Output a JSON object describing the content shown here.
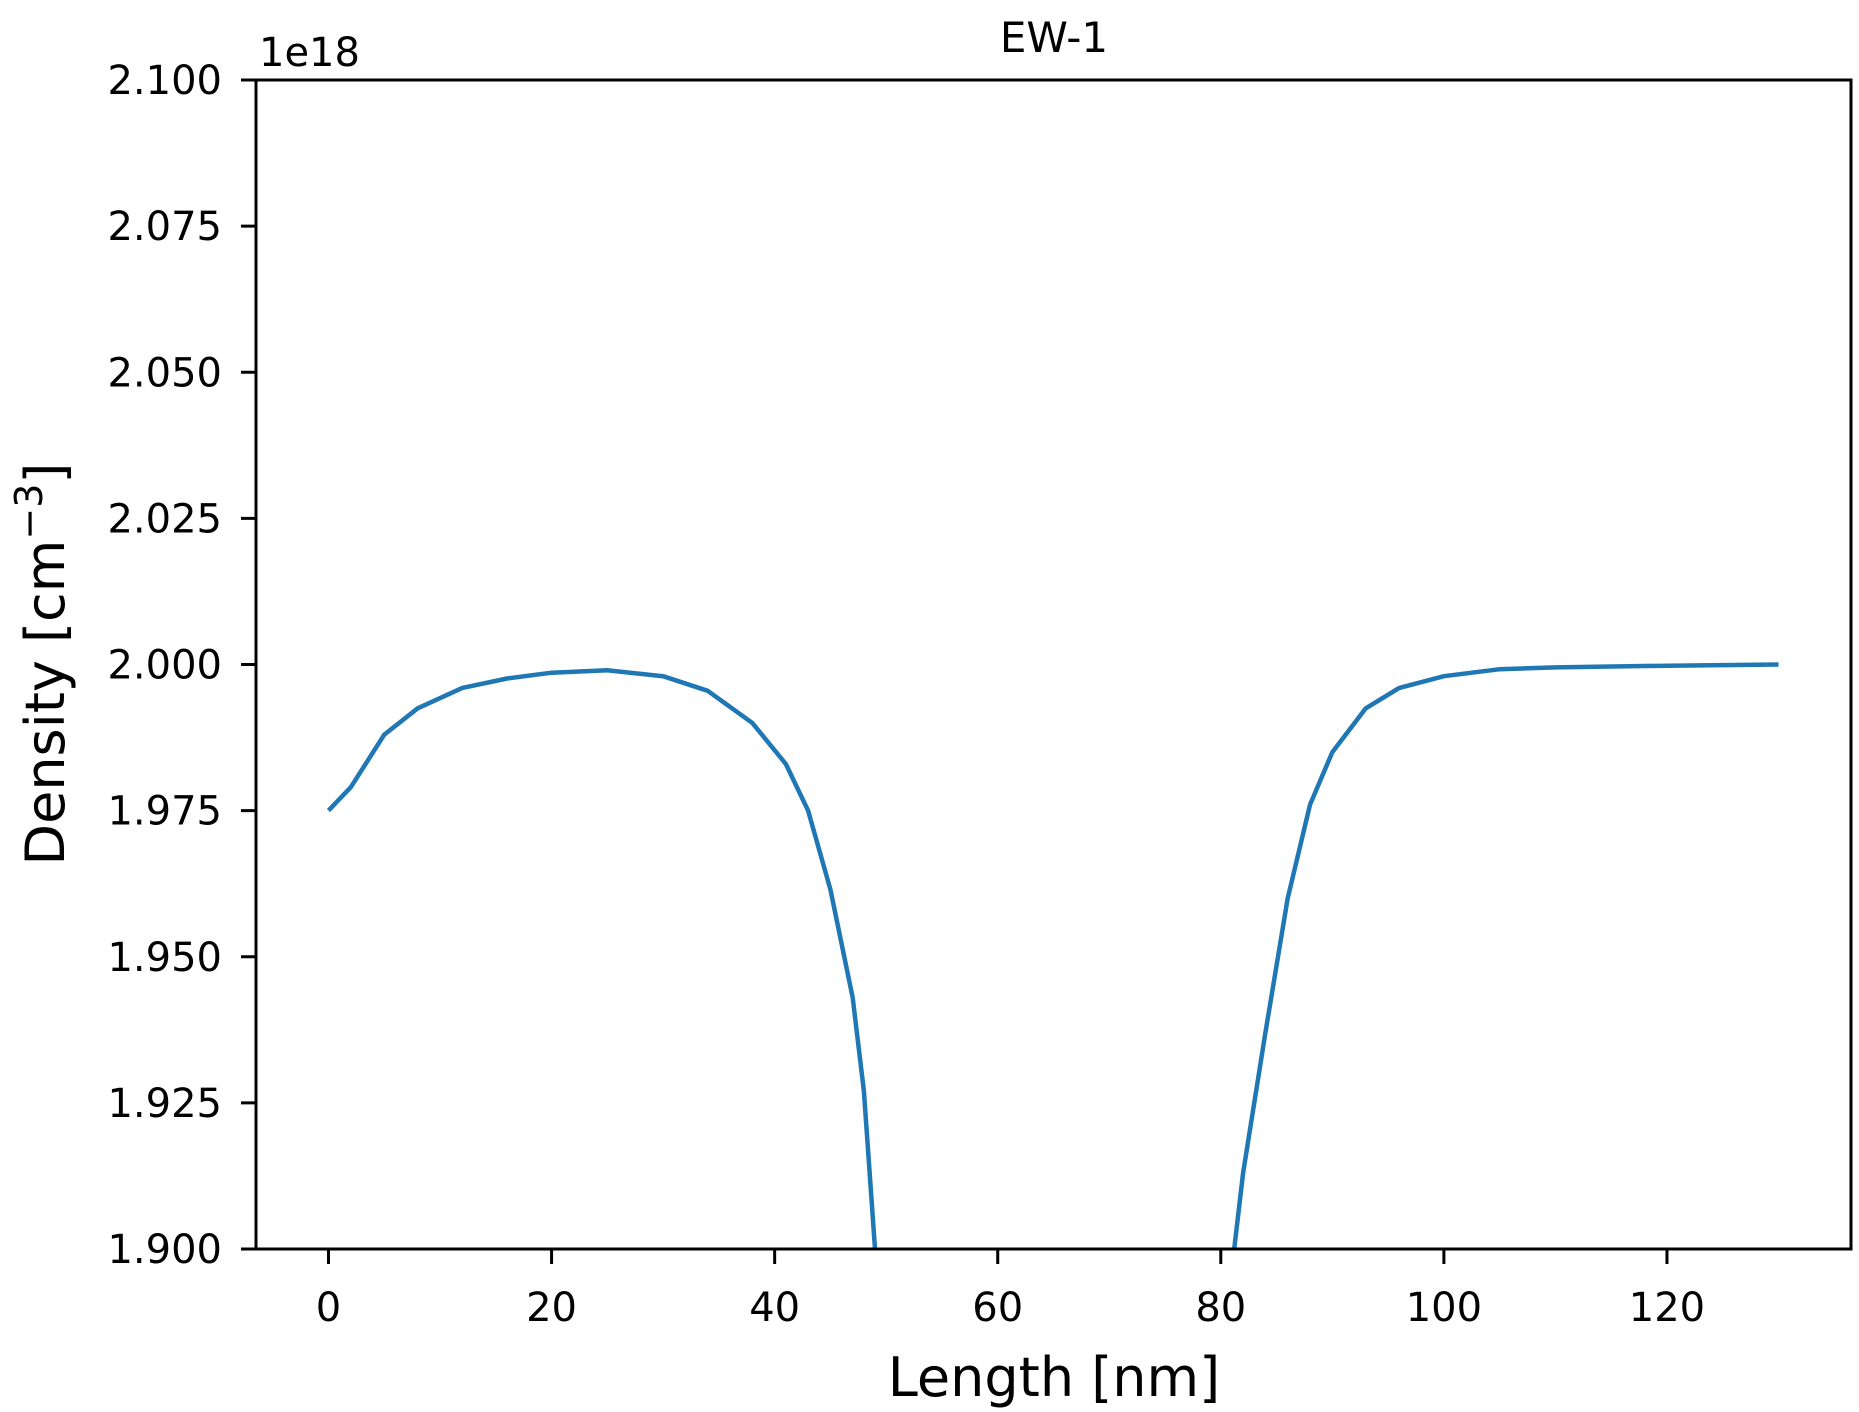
{
  "chart_data": {
    "type": "line",
    "title": "EW-1",
    "xlabel": "Length [nm]",
    "ylabel": "Density [cm⁻³]",
    "ylabel_base": "Density [cm",
    "ylabel_sup": "−3",
    "ylabel_end": "]",
    "y_offset_text": "1e18",
    "xlim": [
      -6.5,
      136.5
    ],
    "ylim": [
      1.9,
      2.1
    ],
    "xticks": [
      0,
      20,
      40,
      60,
      80,
      100,
      120
    ],
    "xtick_labels": [
      "0",
      "20",
      "40",
      "60",
      "80",
      "100",
      "120"
    ],
    "yticks": [
      1.9,
      1.925,
      1.95,
      1.975,
      2.0,
      2.025,
      2.05,
      2.075,
      2.1
    ],
    "ytick_labels": [
      "1.900",
      "1.925",
      "1.950",
      "1.975",
      "2.000",
      "2.025",
      "2.050",
      "2.075",
      "2.100"
    ],
    "grid": false,
    "legend": "none",
    "line_color": "#1f77b4",
    "series": [
      {
        "segments": [
          {
            "x": [
              0,
              2,
              5,
              8,
              12,
              16,
              20,
              25,
              30,
              34,
              38,
              41,
              43,
              45,
              47,
              48,
              49
            ],
            "y": [
              1.975,
              1.979,
              1.988,
              1.9925,
              1.996,
              1.9976,
              1.9986,
              1.999,
              1.998,
              1.9955,
              1.99,
              1.983,
              1.975,
              1.9615,
              1.943,
              1.927,
              1.9
            ]
          },
          {
            "x": [
              81.2,
              82,
              84,
              86,
              88,
              90,
              93,
              96,
              100,
              105,
              110,
              120,
              130
            ],
            "y": [
              1.9,
              1.913,
              1.937,
              1.96,
              1.976,
              1.985,
              1.9925,
              1.996,
              1.998,
              1.9992,
              1.9995,
              1.9998,
              2.0
            ]
          }
        ]
      }
    ]
  }
}
